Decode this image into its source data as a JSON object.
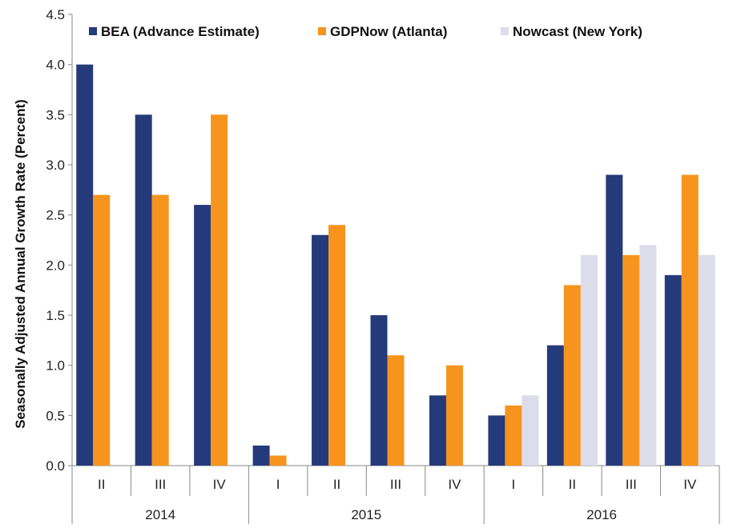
{
  "chart_data": {
    "type": "bar",
    "title": "",
    "xlabel": "",
    "ylabel": "Seasonally Adjusted  Annual Growth Rate (Percent)",
    "ylim": [
      0,
      4.5
    ],
    "yticks": [
      "0.0",
      "0.5",
      "1.0",
      "1.5",
      "2.0",
      "2.5",
      "3.0",
      "3.5",
      "4.0",
      "4.5"
    ],
    "grid": false,
    "legend": "top",
    "groups": [
      {
        "label": "2014",
        "quarters": [
          "II",
          "III",
          "IV"
        ]
      },
      {
        "label": "2015",
        "quarters": [
          "I",
          "II",
          "III",
          "IV"
        ]
      },
      {
        "label": "2016",
        "quarters": [
          "I",
          "II",
          "III",
          "IV"
        ]
      }
    ],
    "categories": [
      "2014 II",
      "2014 III",
      "2014 IV",
      "2015 I",
      "2015 II",
      "2015 III",
      "2015 IV",
      "2016 I",
      "2016 II",
      "2016 III",
      "2016 IV"
    ],
    "series": [
      {
        "name": "BEA (Advance Estimate)",
        "color": "#253a7a",
        "values": [
          4.0,
          3.5,
          2.6,
          0.2,
          2.3,
          1.5,
          0.7,
          0.5,
          1.2,
          2.9,
          1.9
        ]
      },
      {
        "name": "GDPNow (Atlanta)",
        "color": "#f7941d",
        "values": [
          2.7,
          2.7,
          3.5,
          0.1,
          2.4,
          1.1,
          1.0,
          0.6,
          1.8,
          2.1,
          2.9
        ]
      },
      {
        "name": "Nowcast (New York)",
        "color": "#dcdceb",
        "values": [
          null,
          null,
          null,
          null,
          null,
          null,
          null,
          0.7,
          2.1,
          2.2,
          2.1
        ]
      }
    ]
  }
}
